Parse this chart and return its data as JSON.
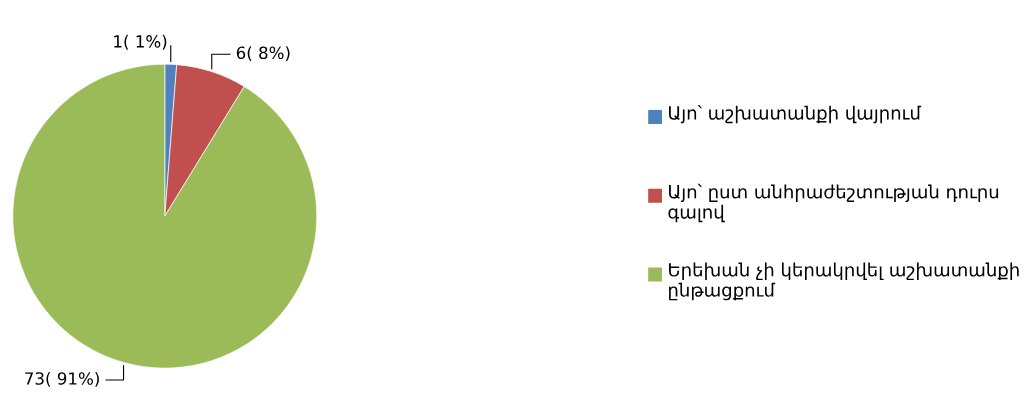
{
  "chart_data": {
    "type": "pie",
    "categories": [
      "Այո՝ աշխատանքի վայրում",
      "Այո՝ ըստ անհրաժեշտության դուրս գալով",
      "Երեխան չի կերակրվել աշխատանքի ընթացքում"
    ],
    "values": [
      1,
      6,
      73
    ],
    "colors": [
      "#4f81bd",
      "#c0504d",
      "#9bbb59"
    ],
    "value_labels": [
      "1( 1%)",
      "6( 8%)",
      "73( 91%)"
    ],
    "legend": "right"
  }
}
